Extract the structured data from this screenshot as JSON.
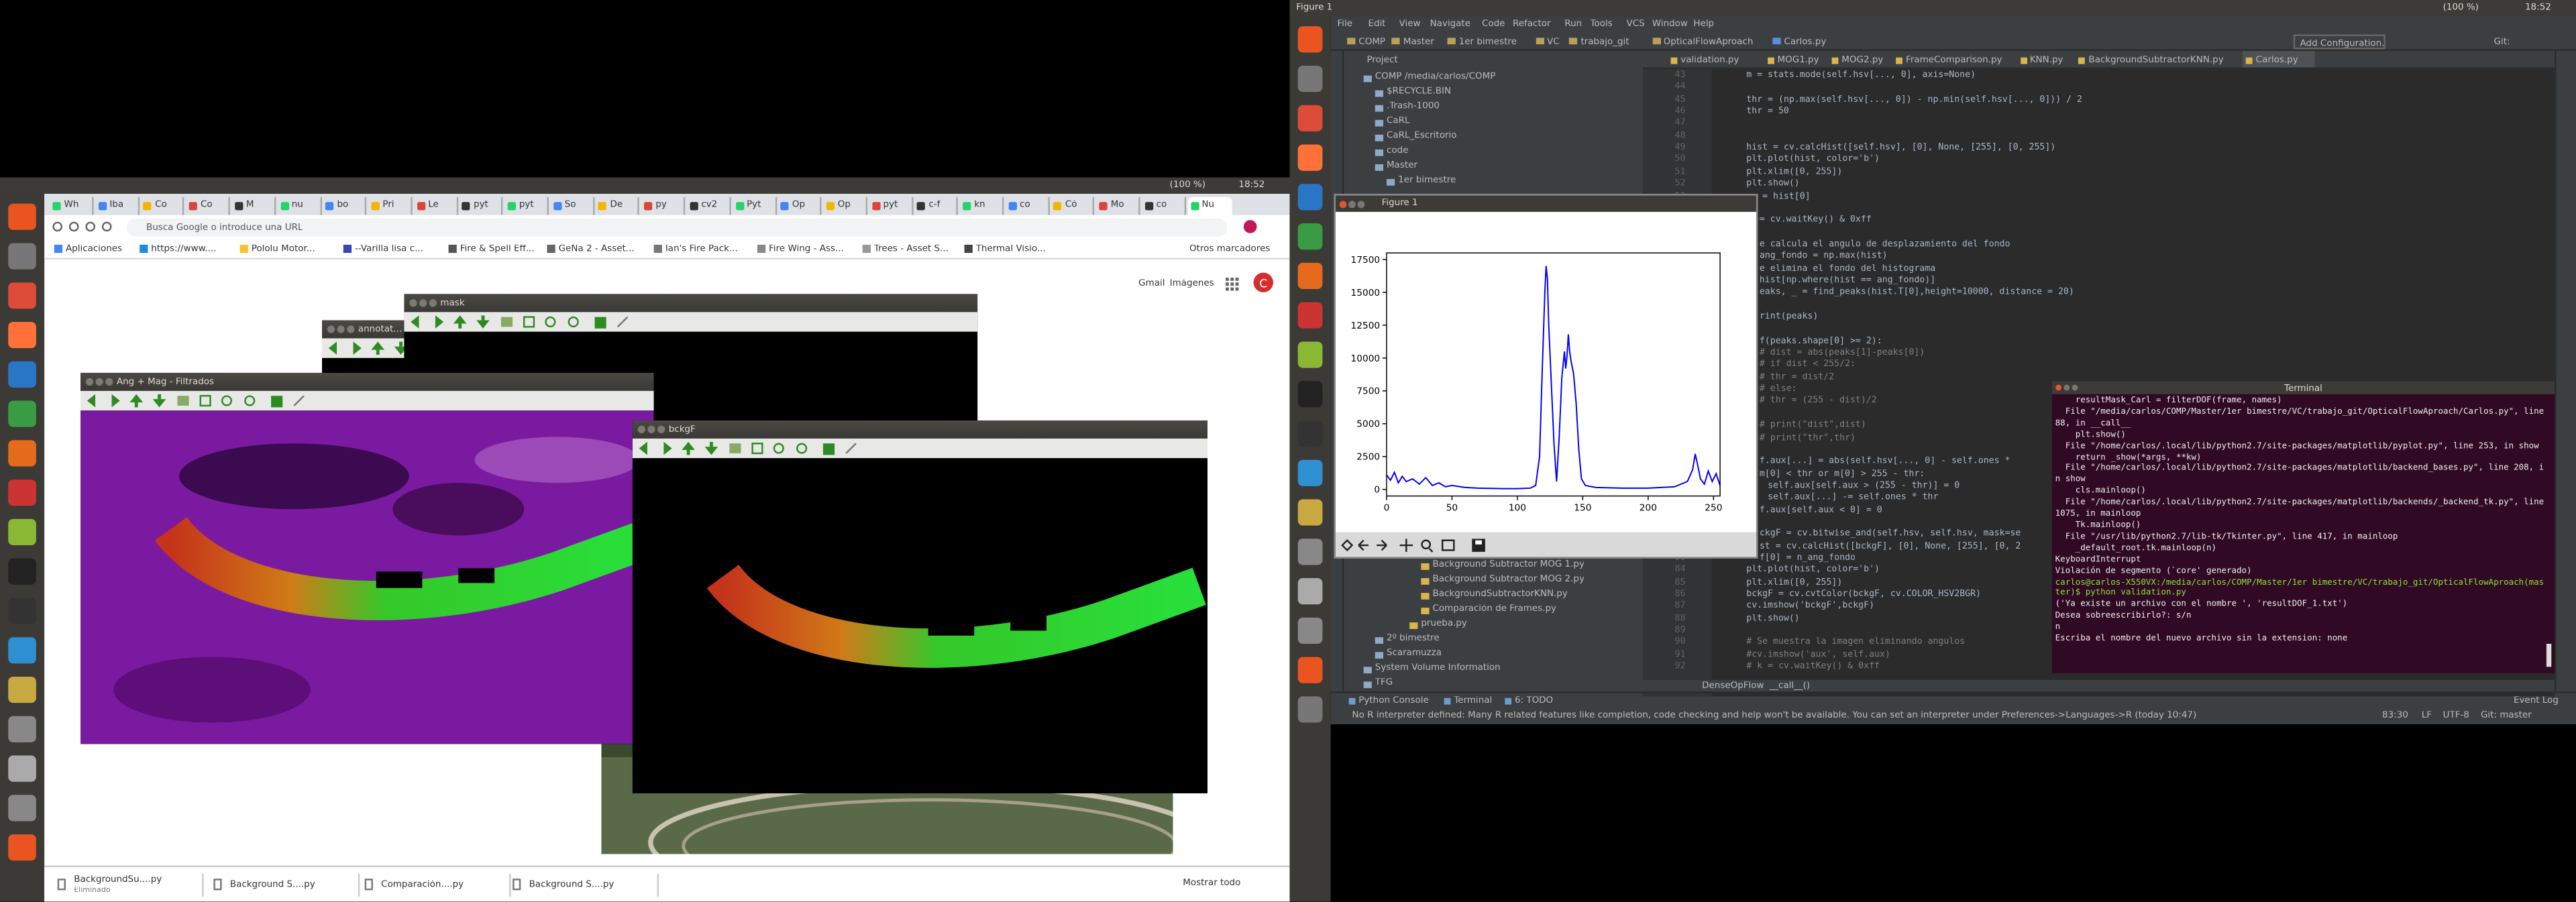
{
  "left_screen": {
    "topbar": {
      "battery": "(100 %)",
      "time": "18:52"
    },
    "chrome": {
      "tabs": [
        "Wh",
        "Iba",
        "Co",
        "Co",
        "M",
        "nu",
        "bo",
        "Pri",
        "Le",
        "pyt",
        "pyt",
        "So",
        "De",
        "py",
        "cv2",
        "Pyt",
        "Op",
        "Op",
        "pyt",
        "c-f",
        "kn",
        "co",
        "Có",
        "Mo",
        "co",
        "Nu"
      ],
      "address": "Busca Google o introduce una URL",
      "bookmarks": [
        "Aplicaciones",
        "https://www....",
        "Pololu Motor...",
        "--Varilla lisa c...",
        "Fire & Spell Eff...",
        "GeNa 2 - Asset...",
        "Ian's Fire Pack...",
        "Fire Wing - Ass...",
        "Trees - Asset S...",
        "Thermal Visio..."
      ],
      "other_bookmarks": "Otros marcadores",
      "links": [
        "Gmail",
        "Imágenes"
      ],
      "avatar": "C"
    },
    "windows": {
      "annotated": "annotat...",
      "mask": "mask",
      "ang_mag": "Ang + Mag - Filtrados",
      "bckgf": "bckgF"
    },
    "downloads": {
      "items": [
        {
          "name": "BackgroundSu....py",
          "status": "Eliminado"
        },
        {
          "name": "Background S....py"
        },
        {
          "name": "Comparación....py"
        },
        {
          "name": "Background S....py"
        }
      ],
      "show_all": "Mostrar todo"
    }
  },
  "right_screen": {
    "topbar": {
      "title": "Figure 1",
      "battery": "(100 %)",
      "time": "18:52"
    },
    "pycharm": {
      "menu": [
        "File",
        "Edit",
        "View",
        "Navigate",
        "Code",
        "Refactor",
        "Run",
        "Tools",
        "VCS",
        "Window",
        "Help"
      ],
      "breadcrumb": [
        "COMP",
        "Master",
        "1er bimestre",
        "VC",
        "trabajo_git",
        "OpticalFlowAproach",
        "Carlos.py"
      ],
      "add_configuration": "Add Configuration...",
      "git": "Git:",
      "project_label": "Project",
      "tree": [
        {
          "text": "COMP /media/carlos/COMP",
          "level": 0
        },
        {
          "text": "$RECYCLE.BIN",
          "level": 1
        },
        {
          "text": ".Trash-1000",
          "level": 1
        },
        {
          "text": "CaRL",
          "level": 1
        },
        {
          "text": "CaRL_Escritorio",
          "level": 1
        },
        {
          "text": "code",
          "level": 1
        },
        {
          "text": "Master",
          "level": 1
        },
        {
          "text": "1er bimestre",
          "level": 2
        }
      ],
      "tree_lower": [
        {
          "text": "Background Subtractor MOG 1.py",
          "level": 5
        },
        {
          "text": "Background Subtractor MOG 2.py",
          "level": 5
        },
        {
          "text": "BackgroundSubtractorKNN.py",
          "level": 5
        },
        {
          "text": "Comparación de Frames.py",
          "level": 5
        },
        {
          "text": "prueba.py",
          "level": 4
        },
        {
          "text": "2º bimestre",
          "level": 1
        },
        {
          "text": "Scaramuzza",
          "level": 1
        },
        {
          "text": "System Volume Information",
          "level": 0
        },
        {
          "text": "TFG",
          "level": 0
        }
      ],
      "editor_tabs": [
        "validation.py",
        "MOG1.py",
        "MOG2.py",
        "FrameComparison.py",
        "KNN.py",
        "BackgroundSubtractorKNN.py",
        "Carlos.py"
      ],
      "code": [
        {
          "n": 43,
          "text": "m = stats.mode(self.hsv[..., 0], axis=None)"
        },
        {
          "n": 44
        },
        {
          "n": 45,
          "text": "thr = (np.max(self.hsv[..., 0]) - np.min(self.hsv[..., 0])) / 2"
        },
        {
          "n": 46,
          "text": "thr = 50"
        },
        {
          "n": 47
        },
        {
          "n": 48
        },
        {
          "n": 49,
          "text": "hist = cv.calcHist([self.hsv], [0], None, [255], [0, 255])"
        },
        {
          "n": 50,
          "text": "plt.plot(hist, color='b')"
        },
        {
          "n": 51,
          "text": "plt.xlim([0, 255])"
        },
        {
          "n": 52,
          "text": "plt.show()"
        },
        {
          "n": 53,
          "text": "ss = hist[0]"
        },
        {
          "n": 54
        },
        {
          "n": 55,
          "text": "= cv.waitKey() & 0xff"
        },
        {
          "n": 56
        },
        {
          "n": 57,
          "text": "e calcula el angulo de desplazamiento del fondo"
        },
        {
          "n": 58,
          "text": "ang_fondo = np.max(hist)"
        },
        {
          "n": 59,
          "text": "e elimina el fondo del histograma"
        },
        {
          "n": 60,
          "text": "hist[np.where(hist == ang_fondo)]"
        },
        {
          "n": 61,
          "text": "eaks, _ = find_peaks(hist.T[0],height=10000, distance = 20)"
        },
        {
          "n": 62
        },
        {
          "n": 63,
          "text": "rint(peaks)"
        },
        {
          "n": 64
        },
        {
          "n": 65,
          "text": "f(peaks.shape[0] >= 2):"
        },
        {
          "n": 66,
          "text": "# dist = abs(peaks[1]-peaks[0])"
        },
        {
          "n": 67,
          "text": "# if dist < 255/2:"
        },
        {
          "n": 68,
          "text": "#     thr = dist/2"
        },
        {
          "n": 69,
          "text": "# else:"
        },
        {
          "n": 70,
          "text": "#     thr = (255 - dist)/2"
        },
        {
          "n": 71
        },
        {
          "n": 72,
          "text": "# print(\"dist\",dist)"
        },
        {
          "n": 73,
          "text": "# print(\"thr\",thr)"
        },
        {
          "n": 74
        },
        {
          "n": 75,
          "text": "f.aux[...] = abs(self.hsv[..., 0] - self.ones *"
        },
        {
          "n": 76,
          "text": "m[0] < thr or m[0] > 255 - thr:"
        },
        {
          "n": 77,
          "text": "self.aux[self.aux > (255 - thr)] = 0"
        },
        {
          "n": 78,
          "text": "self.aux[...] -= self.ones * thr"
        },
        {
          "n": 79,
          "text": "f.aux[self.aux < 0] = 0"
        },
        {
          "n": 80
        },
        {
          "n": 81,
          "text": "ckgF = cv.bitwise_and(self.hsv, self.hsv, mask=se"
        },
        {
          "n": 82,
          "text": "st = cv.calcHist([bckgF], [0], None, [255], [0, 2"
        },
        {
          "n": 83,
          "text": "f[0] = n_ang_fondo"
        },
        {
          "n": 84,
          "text": "plt.plot(hist, color='b')"
        },
        {
          "n": 85,
          "text": "plt.xlim([0, 255])"
        },
        {
          "n": 86,
          "text": "bckgF = cv.cvtColor(bckgF, cv.COLOR_HSV2BGR)"
        },
        {
          "n": 87,
          "text": "cv.imshow('bckgF',bckgF)"
        },
        {
          "n": 88,
          "text": "plt.show()"
        },
        {
          "n": 89
        },
        {
          "n": 90,
          "text": "# Se muestra la imagen eliminando angulos"
        },
        {
          "n": 91,
          "text": "#cv.imshow('aux', self.aux)"
        },
        {
          "n": 92,
          "text": "# k = cv.waitKey() & 0xff"
        }
      ],
      "code_footer": [
        "DenseOpFlow",
        "__call__()"
      ],
      "tool_tabs": [
        "Python Console",
        "Terminal",
        "6: TODO"
      ],
      "event_log": "Event Log",
      "status_message": "No R interpreter defined: Many R related features like completion, code checking and help won't be available. You can set an interpreter under Preferences->Languages->R (today 10:47)",
      "status_right": [
        "83:30",
        "LF",
        "UTF-8",
        "Git: master"
      ]
    },
    "figure": {
      "title": "Figure 1"
    },
    "terminal": {
      "title": "Terminal",
      "lines": [
        "    resultMask_Carl = filterDOF(frame, names)",
        "  File \"/media/carlos/COMP/Master/1er bimestre/VC/trabajo_git/OpticalFlowAproach/Carlos.py\", line 88, in __call__",
        "    plt.show()",
        "  File \"/home/carlos/.local/lib/python2.7/site-packages/matplotlib/pyplot.py\", line 253, in show",
        "    return _show(*args, **kw)",
        "  File \"/home/carlos/.local/lib/python2.7/site-packages/matplotlib/backend_bases.py\", line 208, in show",
        "    cls.mainloop()",
        "  File \"/home/carlos/.local/lib/python2.7/site-packages/matplotlib/backends/_backend_tk.py\", line 1075, in mainloop",
        "    Tk.mainloop()",
        "  File \"/usr/lib/python2.7/lib-tk/Tkinter.py\", line 417, in mainloop",
        "    _default_root.tk.mainloop(n)",
        "KeyboardInterrupt",
        "Violación de segmento (`core' generado)",
        "carlos@carlos-X550VX:/media/carlos/COMP/Master/1er bimestre/VC/trabajo_git/OpticalFlowAproach(master)$ python validation.py",
        "('Ya existe un archivo con el nombre ', 'resultDOF_1.txt')",
        "Desea sobreescribirlo?: s/n",
        "n",
        "Escriba el nombre del nuevo archivo sin la extension: none"
      ]
    }
  },
  "chart_data": {
    "type": "line",
    "x": [
      0,
      3,
      6,
      9,
      12,
      15,
      20,
      25,
      30,
      35,
      40,
      45,
      50,
      60,
      70,
      80,
      90,
      100,
      110,
      114,
      117,
      119,
      121,
      122,
      123,
      124,
      126,
      128,
      130,
      132,
      134,
      136,
      137,
      138,
      139,
      140,
      141,
      143,
      145,
      147,
      149,
      152,
      160,
      180,
      200,
      220,
      230,
      234,
      236,
      238,
      240,
      243,
      246,
      249,
      252,
      255
    ],
    "values": [
      1100,
      700,
      1300,
      500,
      1000,
      600,
      800,
      400,
      900,
      300,
      500,
      200,
      300,
      150,
      100,
      80,
      60,
      60,
      100,
      300,
      2500,
      9000,
      15000,
      17000,
      16000,
      12500,
      8000,
      3500,
      600,
      4000,
      8500,
      10500,
      9200,
      10200,
      11800,
      10500,
      9800,
      8800,
      6500,
      3000,
      800,
      300,
      150,
      100,
      100,
      200,
      600,
      1500,
      2700,
      1800,
      800,
      400,
      1400,
      600,
      1200,
      300
    ],
    "color": "#0000ff",
    "xlim": [
      0,
      255
    ],
    "ylim": [
      -500,
      18000
    ],
    "xticks": [
      0,
      50,
      100,
      150,
      200,
      250
    ],
    "yticks": [
      0,
      2500,
      5000,
      7500,
      10000,
      12500,
      15000,
      17500
    ]
  }
}
